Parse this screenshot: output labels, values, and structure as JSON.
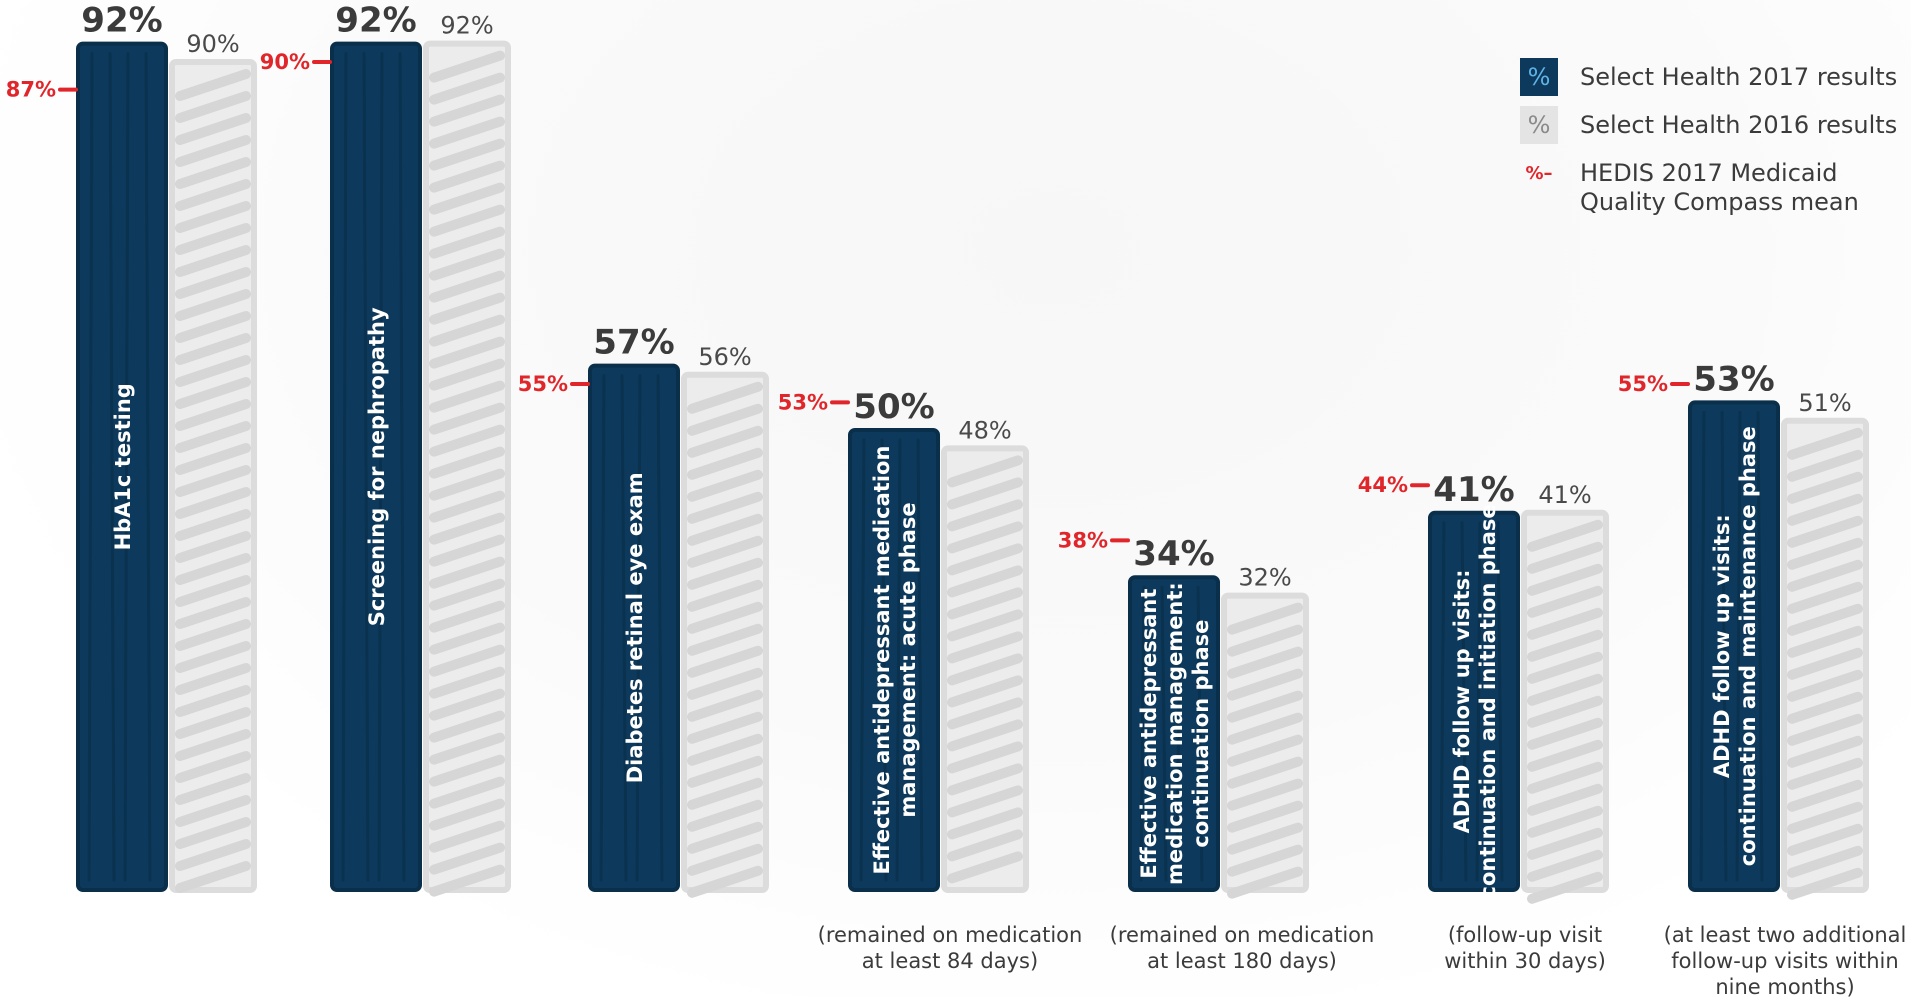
{
  "chart_data": {
    "type": "bar",
    "categories": [
      "HbA1c testing",
      "Screening for nephropathy",
      "Diabetes retinal eye exam",
      "Effective antidepressant medication management: acute phase",
      "Effective antidepressant medication management: continuation phase",
      "ADHD follow up visits: continuation and initiation phase",
      "ADHD follow up visits: continuation and maintenance phase"
    ],
    "series": [
      {
        "name": "Select Health 2017 results",
        "values": [
          92,
          92,
          57,
          50,
          34,
          41,
          53
        ],
        "color": "#0d3a5c"
      },
      {
        "name": "Select Health 2016 results",
        "values": [
          90,
          92,
          56,
          48,
          32,
          41,
          51
        ],
        "color": "#e0e0e0"
      },
      {
        "name": "HEDIS 2017 Medicaid Quality Compass mean",
        "values": [
          87,
          90,
          55,
          53,
          38,
          44,
          55
        ],
        "color": "#e1262b"
      }
    ],
    "labels_2017": [
      "92%",
      "92%",
      "57%",
      "50%",
      "34%",
      "41%",
      "53%"
    ],
    "labels_2016": [
      "90%",
      "92%",
      "56%",
      "48%",
      "32%",
      "41%",
      "51%"
    ],
    "labels_hedis": [
      "87%",
      "90%",
      "55%",
      "53%",
      "38%",
      "44%",
      "55%"
    ],
    "bar_text": [
      [
        "HbA1c testing"
      ],
      [
        "Screening for nephropathy"
      ],
      [
        "Diabetes retinal eye exam"
      ],
      [
        "Effective antidepressant medication",
        "management: acute phase"
      ],
      [
        "Effective antidepressant",
        "medication management:",
        "continuation phase"
      ],
      [
        "ADHD follow  up visits:",
        "continuation and initiation phase"
      ],
      [
        "ADHD follow  up visits:",
        "continuation and maintenance phase"
      ]
    ],
    "notes": [
      "",
      "",
      "",
      "(remained on medication\nat least 84 days)",
      "(remained on medication\nat least 180 days)",
      "(follow-up visit\nwithin 30 days)",
      "(at least two additional\nfollow-up visits within\nnine months)"
    ],
    "ylim": [
      0,
      100
    ],
    "legend_position": "top-right"
  },
  "legend": {
    "items": [
      {
        "symbol": "%",
        "label": "Select Health 2017 results"
      },
      {
        "symbol": "%",
        "label": "Select Health 2016 results"
      },
      {
        "symbol": "%–",
        "label": "HEDIS 2017 Medicaid\nQuality Compass mean"
      }
    ]
  }
}
